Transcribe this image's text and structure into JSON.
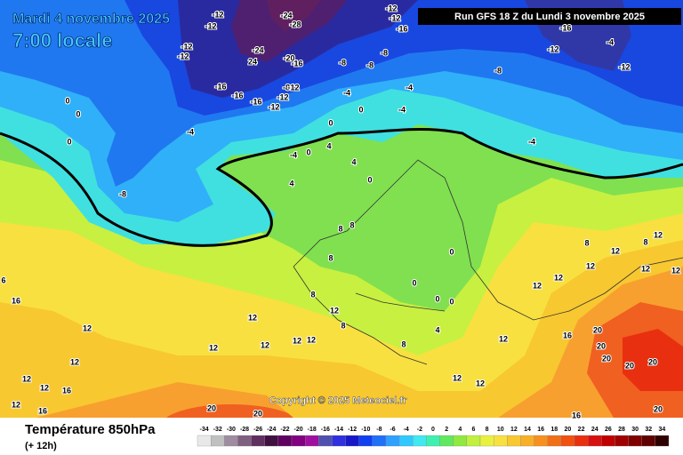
{
  "header": {
    "date": "Mardi 4 novembre 2025",
    "time": "7:00 locale",
    "run": "Run GFS 18 Z du Lundi 3 novembre 2025"
  },
  "copyright": "Copyright © 2025 Meteociel.fr",
  "footer": {
    "title": "Température 850hPa",
    "lead": "(+ 12h)"
  },
  "scale": {
    "values": [
      -34,
      -32,
      -30,
      -28,
      -26,
      -24,
      -22,
      -20,
      -18,
      -16,
      -14,
      -12,
      -10,
      -8,
      -6,
      -4,
      -2,
      0,
      2,
      4,
      6,
      8,
      10,
      12,
      14,
      16,
      18,
      20,
      22,
      24,
      26,
      28,
      30,
      32,
      34
    ],
    "colors": [
      "#e8e8e8",
      "#c0c0c0",
      "#a08ca0",
      "#806080",
      "#603060",
      "#401040",
      "#600060",
      "#800080",
      "#a010a0",
      "#5050b0",
      "#3030e0",
      "#1818c8",
      "#1040f0",
      "#2070f8",
      "#30a0ff",
      "#30c8ff",
      "#40e8f0",
      "#40f0b0",
      "#60e860",
      "#90e840",
      "#c0f040",
      "#e8f040",
      "#f8e040",
      "#f8c830",
      "#f8b028",
      "#f89020",
      "#f07018",
      "#f05010",
      "#e83010",
      "#d81010",
      "#c00000",
      "#a00000",
      "#800000",
      "#600000",
      "#300000"
    ]
  },
  "contour_labels": [
    -12,
    -12,
    -24,
    -28,
    -12,
    -12,
    -16,
    -16,
    -4,
    -12,
    -12,
    -12,
    -12,
    -24,
    24,
    -20,
    -16,
    -8,
    -8,
    -8,
    -8,
    -16,
    -16,
    -16,
    -8,
    -12,
    -12,
    -12,
    -4,
    -4,
    -4,
    0,
    0,
    0,
    0,
    0,
    -4,
    4,
    0,
    -4,
    -4,
    -8,
    4,
    4,
    0,
    8,
    8,
    8,
    0,
    0,
    0,
    0,
    8,
    12,
    8,
    12,
    12,
    12,
    12,
    12,
    12,
    12,
    6,
    16,
    12,
    12,
    16,
    12,
    16,
    20,
    20,
    12,
    12,
    12,
    12,
    12,
    12,
    12,
    12,
    12,
    12,
    8,
    8,
    16,
    20,
    20,
    20,
    20,
    20,
    20,
    16,
    8,
    4
  ]
}
